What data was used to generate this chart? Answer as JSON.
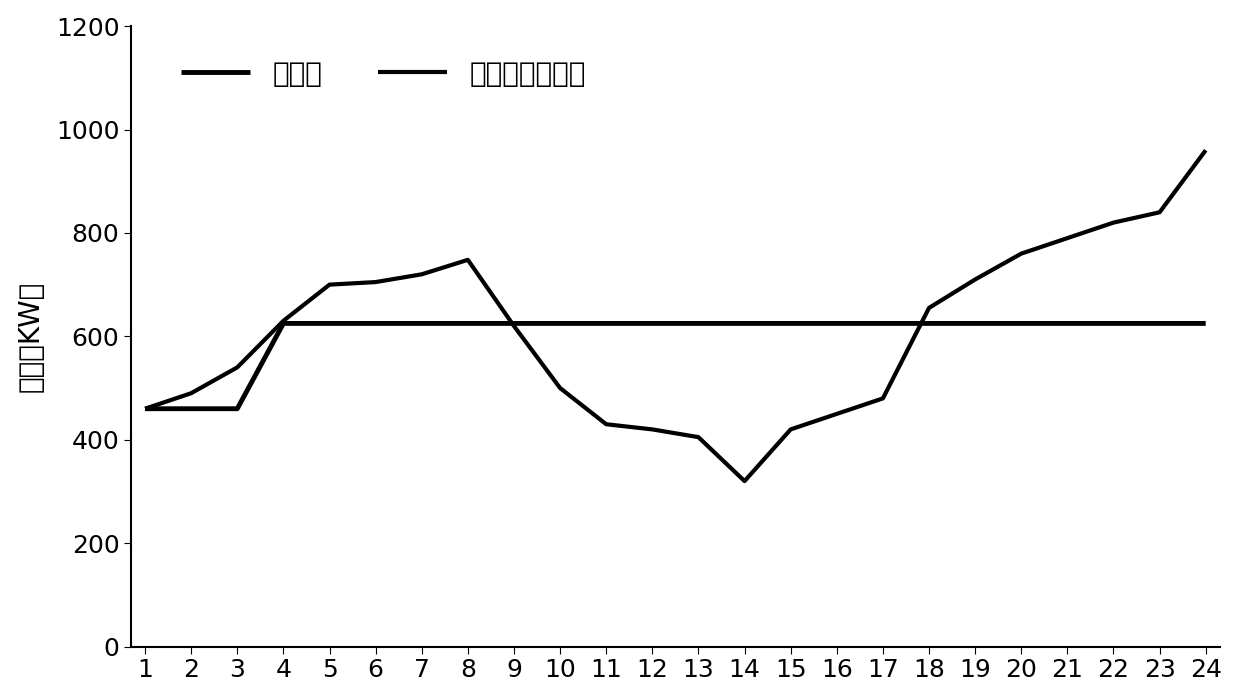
{
  "heat_load_x": [
    1,
    2,
    3,
    4,
    5,
    6,
    7,
    8,
    9,
    10,
    11,
    12,
    13,
    14,
    15,
    16,
    17,
    18,
    19,
    20,
    21,
    22,
    23,
    24
  ],
  "heat_load_y": [
    460,
    460,
    460,
    625,
    625,
    625,
    625,
    625,
    625,
    625,
    625,
    625,
    625,
    625,
    625,
    625,
    625,
    625,
    625,
    625,
    625,
    625,
    625,
    625
  ],
  "actual_heat_x": [
    1,
    2,
    3,
    4,
    5,
    6,
    7,
    8,
    9,
    10,
    11,
    12,
    13,
    14,
    15,
    16,
    17,
    18,
    19,
    20,
    21,
    22,
    23,
    24
  ],
  "actual_heat_y": [
    460,
    490,
    540,
    630,
    700,
    705,
    720,
    748,
    620,
    500,
    430,
    420,
    405,
    320,
    420,
    450,
    480,
    655,
    710,
    760,
    790,
    820,
    840,
    960
  ],
  "line_color": "#000000",
  "line_width": 3.0,
  "ylabel": "热力（KW）",
  "ylim": [
    0,
    1200
  ],
  "yticks": [
    0,
    200,
    400,
    600,
    800,
    1000,
    1200
  ],
  "xlim": [
    1,
    24
  ],
  "xticks": [
    1,
    2,
    3,
    4,
    5,
    6,
    7,
    8,
    9,
    10,
    11,
    12,
    13,
    14,
    15,
    16,
    17,
    18,
    19,
    20,
    21,
    22,
    23,
    24
  ],
  "legend_label1": "热负荷",
  "legend_label2": "实际回收的热量",
  "font_size": 20,
  "tick_font_size": 18,
  "ylabel_font_size": 20,
  "background_color": "#ffffff"
}
